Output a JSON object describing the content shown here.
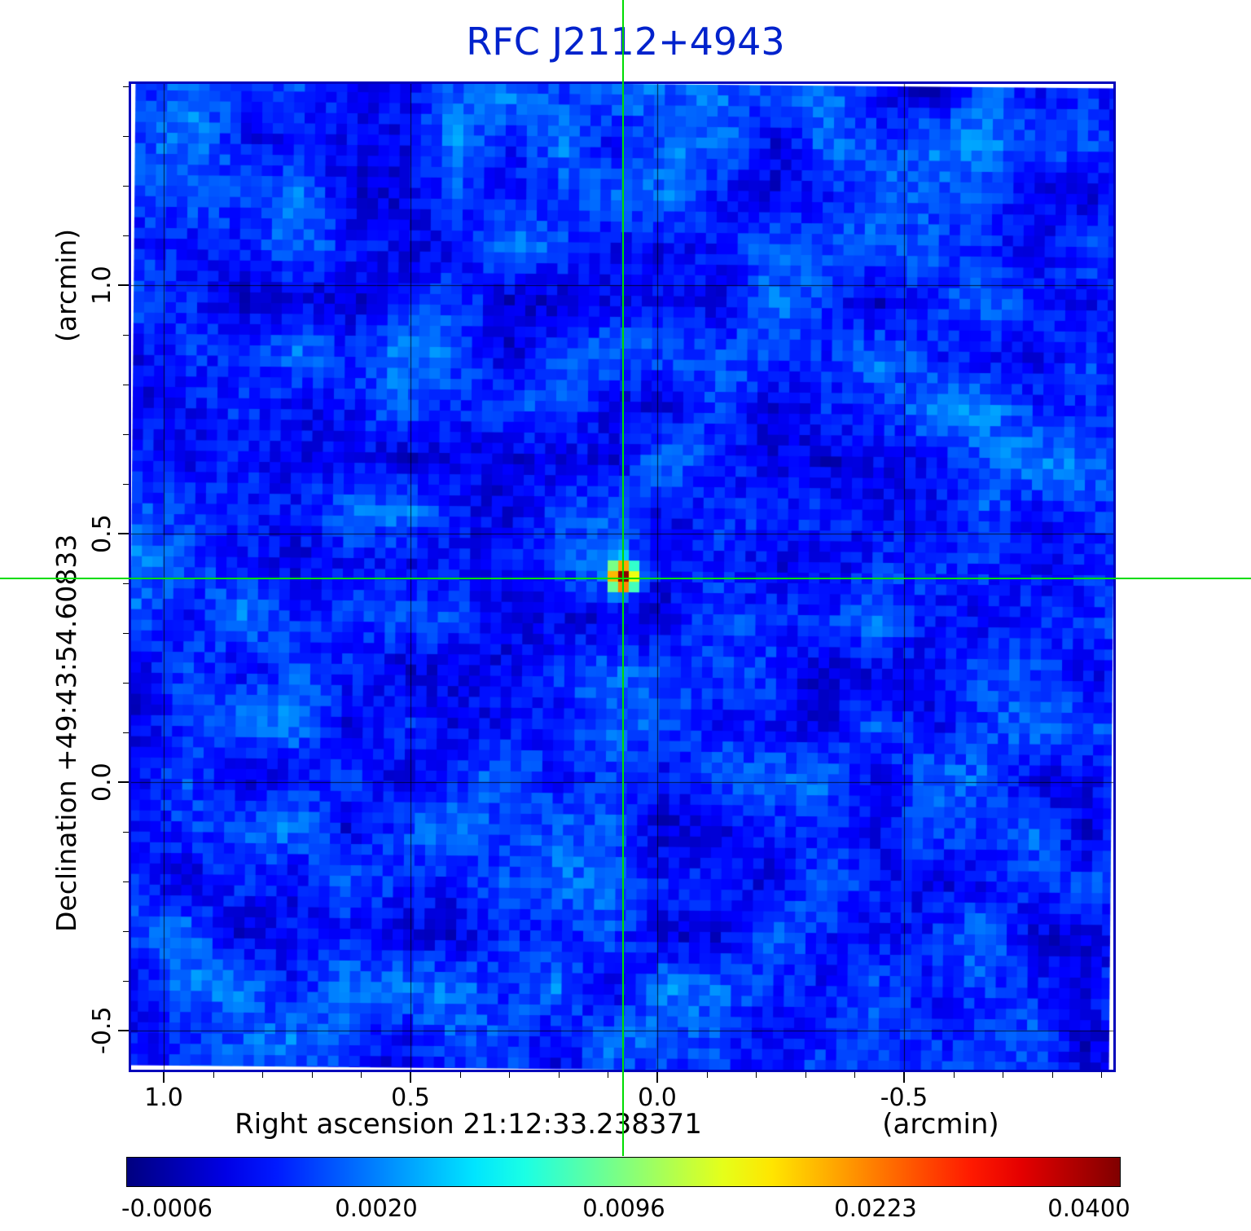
{
  "title": "RFC J2112+4943",
  "colors": {
    "title_blue": "#0022cc",
    "frame_blue": "#0000bb",
    "crosshair_green": "#00dd00",
    "grid": "#000000",
    "background": "#ffffff"
  },
  "y_axis": {
    "unit_label": "(arcmin)",
    "axis_label": "Declination  +49:43:54.60833",
    "ticks": [
      "1.0",
      "0.5",
      "0.0",
      "-0.5"
    ]
  },
  "x_axis": {
    "axis_label": "Right ascension  21:12:33.238371",
    "unit_label": "(arcmin)",
    "ticks": [
      "1.0",
      "0.5",
      "0.0",
      "-0.5"
    ]
  },
  "colorbar": {
    "tick_labels": [
      "-0.0006",
      "0.0020",
      "0.0096",
      "0.0223",
      "0.0400"
    ]
  },
  "chart_data": {
    "type": "heatmap",
    "title": "RFC J2112+4943",
    "xlabel": "Right ascension 21:12:33.238371 (arcmin)",
    "ylabel": "Declination +49:43:54.60833 (arcmin)",
    "x_ticks": [
      1.0,
      0.5,
      0.0,
      -0.5
    ],
    "y_ticks": [
      1.0,
      0.5,
      0.0,
      -0.5
    ],
    "x_range": [
      1.06,
      -0.93
    ],
    "y_range": [
      1.41,
      -0.58
    ],
    "grid": true,
    "legend_position": "colorbar-bottom",
    "colormap": "jet",
    "intensity_scale": "asinh",
    "colorbar_ticks": [
      -0.0006,
      0.002,
      0.0096,
      0.0223,
      0.04
    ],
    "intensity_min": -0.0006,
    "intensity_max": 0.04,
    "background_noise_rms": 0.001,
    "source": {
      "x_arcmin": 0.07,
      "y_arcmin": 0.41,
      "peak_intensity": 0.04
    },
    "crosshair": {
      "x_arcmin": 0.07,
      "y_arcmin": 0.41
    }
  }
}
